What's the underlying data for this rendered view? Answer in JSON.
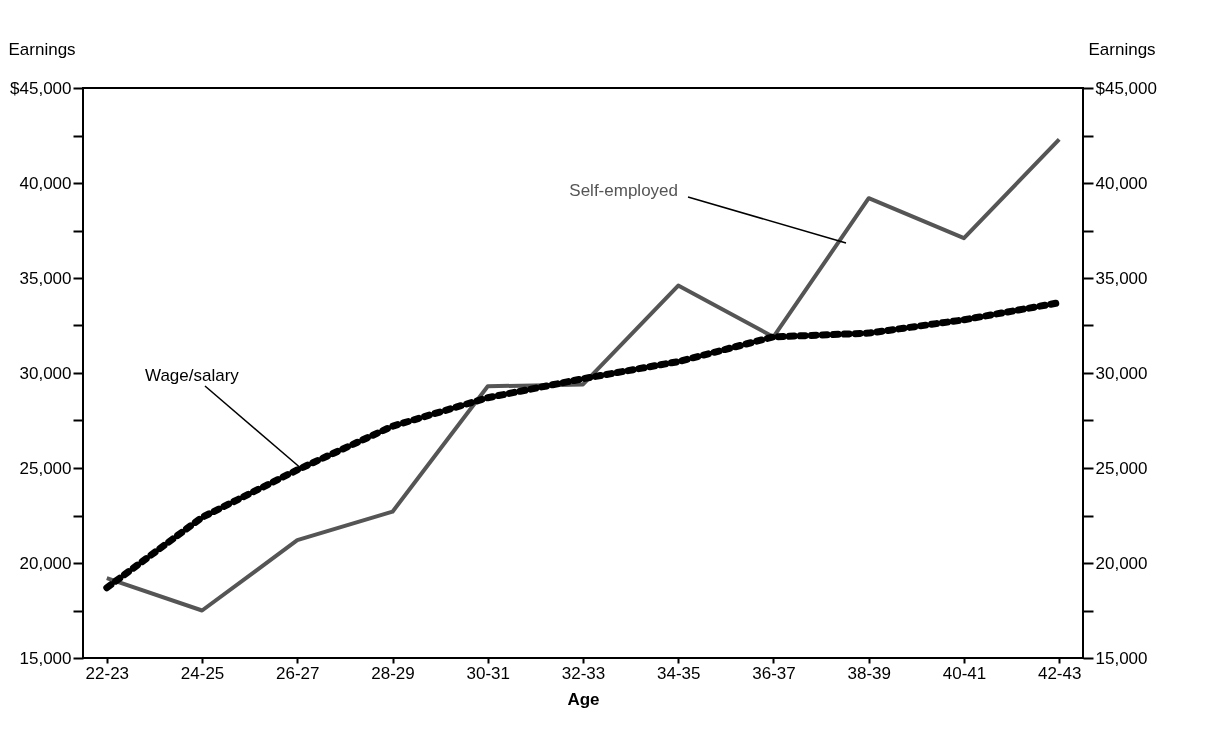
{
  "chart_data": {
    "type": "line",
    "xlabel": "Age",
    "ylabel": "Earnings",
    "y2label": "Earnings",
    "categories": [
      "22-23",
      "24-25",
      "26-27",
      "28-29",
      "30-31",
      "32-33",
      "34-35",
      "36-37",
      "38-39",
      "40-41",
      "42-43"
    ],
    "series": [
      {
        "name": "Self-employed",
        "color": "#555555",
        "line_style": "solid",
        "values": [
          19200,
          17500,
          21200,
          22700,
          29300,
          29400,
          34600,
          31900,
          39200,
          37100,
          42300
        ]
      },
      {
        "name": "Wage/salary",
        "color": "#000000",
        "line_style": "dotted",
        "values": [
          18700,
          22400,
          24900,
          27200,
          28700,
          29700,
          30600,
          31900,
          32100,
          32800,
          33700
        ]
      }
    ],
    "ylim": [
      15000,
      45000
    ],
    "yticks": [
      {
        "value": 15000,
        "label": "15,000"
      },
      {
        "value": 17500,
        "label": null
      },
      {
        "value": 20000,
        "label": "20,000"
      },
      {
        "value": 22500,
        "label": null
      },
      {
        "value": 25000,
        "label": "25,000"
      },
      {
        "value": 27500,
        "label": null
      },
      {
        "value": 30000,
        "label": "30,000"
      },
      {
        "value": 32500,
        "label": null
      },
      {
        "value": 35000,
        "label": "35,000"
      },
      {
        "value": 37500,
        "label": null
      },
      {
        "value": 40000,
        "label": "40,000"
      },
      {
        "value": 42500,
        "label": null
      },
      {
        "value": 45000,
        "label": "$45,000"
      }
    ],
    "y2lim": [
      15000,
      45000
    ],
    "y2ticks": [
      {
        "value": 15000,
        "label": "15,000"
      },
      {
        "value": 17500,
        "label": null
      },
      {
        "value": 20000,
        "label": "20,000"
      },
      {
        "value": 22500,
        "label": null
      },
      {
        "value": 25000,
        "label": "25,000"
      },
      {
        "value": 27500,
        "label": null
      },
      {
        "value": 30000,
        "label": "30,000"
      },
      {
        "value": 32500,
        "label": null
      },
      {
        "value": 35000,
        "label": "35,000"
      },
      {
        "value": 37500,
        "label": null
      },
      {
        "value": 40000,
        "label": "40,000"
      },
      {
        "value": 42500,
        "label": null
      },
      {
        "value": 45000,
        "label": "$45,000"
      }
    ],
    "grid": false,
    "marker": "none"
  }
}
